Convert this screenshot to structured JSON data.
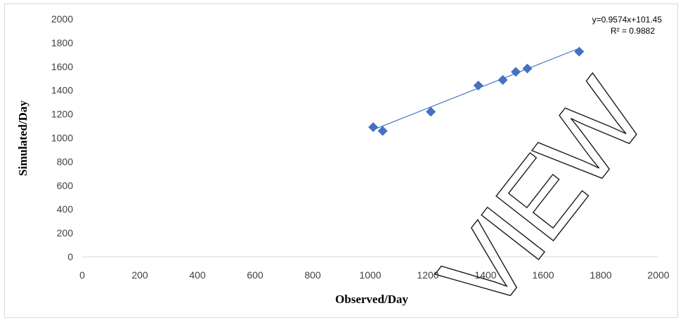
{
  "chart_data": {
    "type": "scatter",
    "title": "",
    "xlabel": "Observed/Day",
    "ylabel": "Simulated/Day",
    "xlim": [
      0,
      2000
    ],
    "ylim": [
      0,
      2000
    ],
    "x_ticks": [
      0,
      200,
      400,
      600,
      800,
      1000,
      1200,
      1400,
      1600,
      1800,
      2000
    ],
    "y_ticks": [
      0,
      200,
      400,
      600,
      800,
      1000,
      1200,
      1400,
      1600,
      1800,
      2000
    ],
    "grid": false,
    "series": [
      {
        "marker": "diamond",
        "color": "#4472c4",
        "points": [
          {
            "x": 1010,
            "y": 1090
          },
          {
            "x": 1043,
            "y": 1058
          },
          {
            "x": 1210,
            "y": 1220
          },
          {
            "x": 1375,
            "y": 1440
          },
          {
            "x": 1460,
            "y": 1487
          },
          {
            "x": 1505,
            "y": 1555
          },
          {
            "x": 1545,
            "y": 1583
          },
          {
            "x": 1725,
            "y": 1725
          }
        ]
      }
    ],
    "trendline": {
      "type": "linear",
      "slope": 0.9574,
      "intercept": 101.45,
      "x_range": [
        1010,
        1725
      ],
      "color": "#4472c4",
      "equation_label": "y=0.9574x+101.45",
      "r2_label": "R² = 0.9882"
    }
  },
  "watermark": {
    "text": "VIEW"
  }
}
